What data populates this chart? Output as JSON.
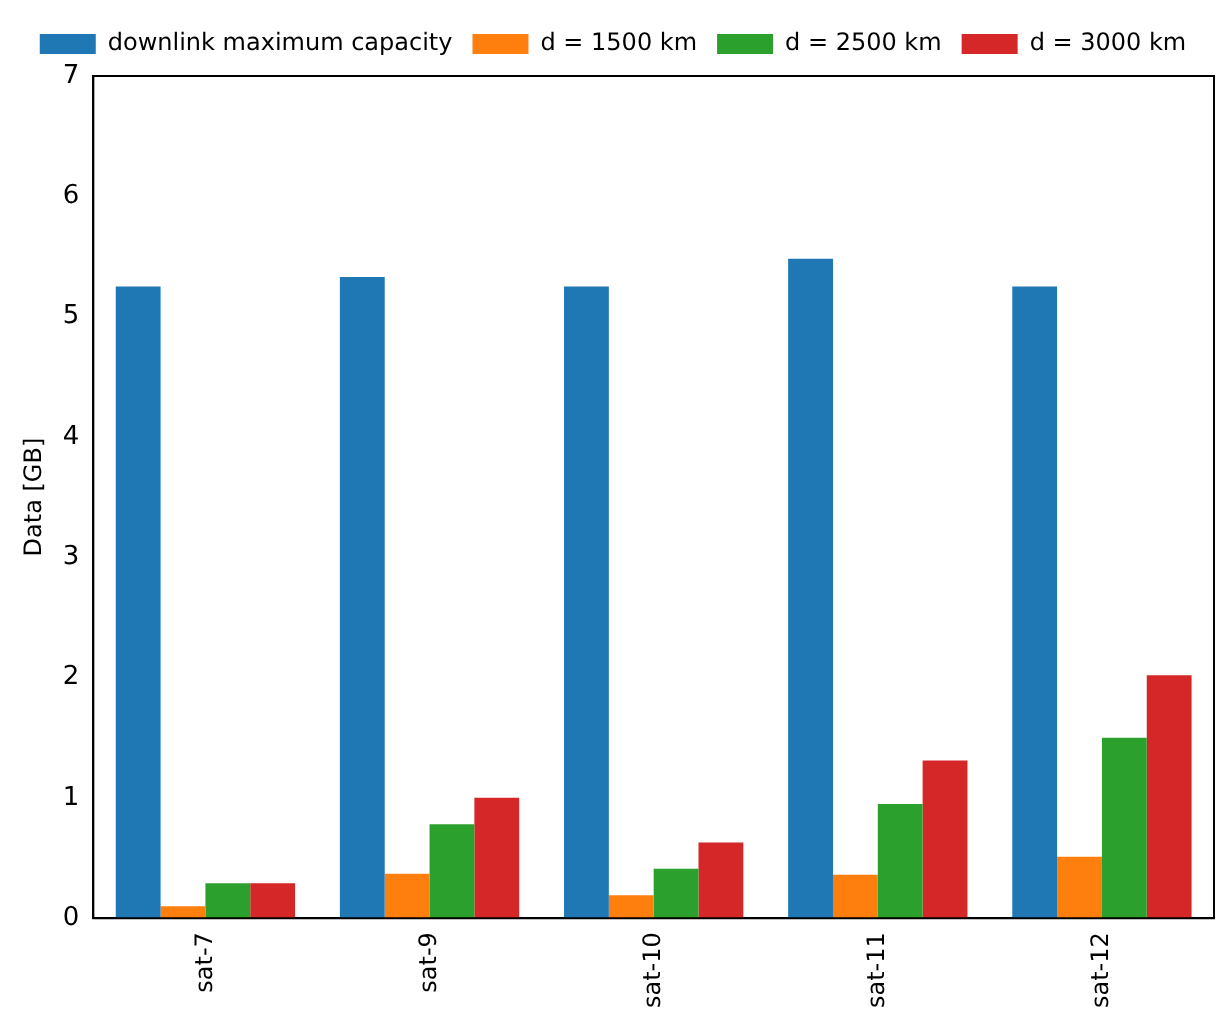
{
  "chart_data": {
    "type": "bar",
    "ylabel": "Data [GB]",
    "categories": [
      "sat-7",
      "sat-9",
      "sat-10",
      "sat-11",
      "sat-12"
    ],
    "series": [
      {
        "name": "downlink maximum capacity",
        "color": "#1f77b4",
        "values": [
          5.25,
          5.33,
          5.25,
          5.48,
          5.25
        ]
      },
      {
        "name": "d = 1500 km",
        "color": "#ff7f0e",
        "values": [
          0.1,
          0.37,
          0.19,
          0.36,
          0.51
        ]
      },
      {
        "name": "d = 2500 km",
        "color": "#2ca02c",
        "values": [
          0.29,
          0.78,
          0.41,
          0.95,
          1.5
        ]
      },
      {
        "name": "d = 3000 km",
        "color": "#d62728",
        "values": [
          0.29,
          1.0,
          0.63,
          1.31,
          2.02
        ]
      }
    ],
    "ylim": [
      0,
      7
    ],
    "yticks": [
      0,
      1,
      2,
      3,
      4,
      5,
      6,
      7
    ],
    "grid": false,
    "legend": "top"
  }
}
